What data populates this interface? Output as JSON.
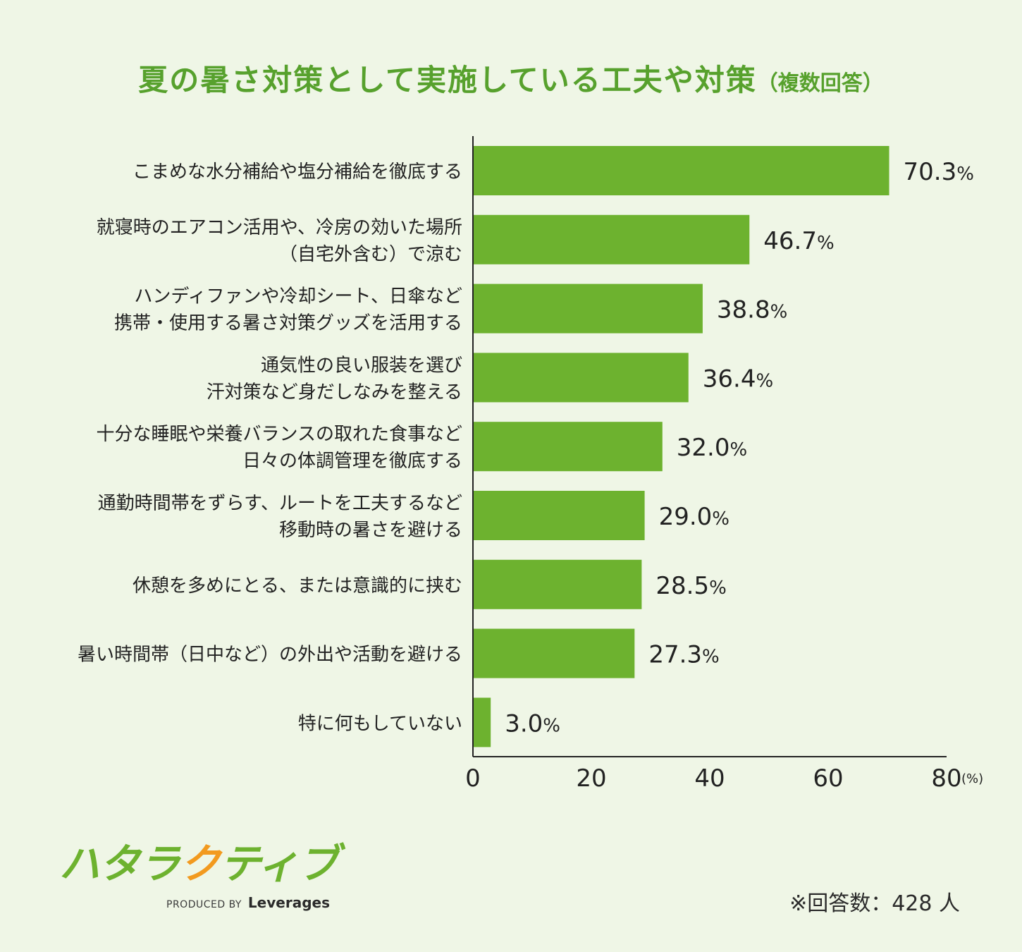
{
  "title": {
    "main": "夏の暑さ対策として実施している工夫や対策",
    "sub": "（複数回答）"
  },
  "chart_data": {
    "type": "bar",
    "orientation": "horizontal",
    "title": "夏の暑さ対策として実施している工夫や対策（複数回答）",
    "categories": [
      [
        "こまめな水分補給や塩分補給を徹底する"
      ],
      [
        "就寝時のエアコン活用や、冷房の効いた場所",
        "（自宅外含む）で涼む"
      ],
      [
        "ハンディファンや冷却シート、日傘など",
        "携帯・使用する暑さ対策グッズを活用する"
      ],
      [
        "通気性の良い服装を選び",
        "汗対策など身だしなみを整える"
      ],
      [
        "十分な睡眠や栄養バランスの取れた食事など",
        "日々の体調管理を徹底する"
      ],
      [
        "通勤時間帯をずらす、ルートを工夫するなど",
        "移動時の暑さを避ける"
      ],
      [
        "休憩を多めにとる、または意識的に挟む"
      ],
      [
        "暑い時間帯（日中など）の外出や活動を避ける"
      ],
      [
        "特に何もしていない"
      ]
    ],
    "values": [
      70.3,
      46.7,
      38.8,
      36.4,
      32.0,
      29.0,
      28.5,
      27.3,
      3.0
    ],
    "value_labels": [
      "70.3",
      "46.7",
      "38.8",
      "36.4",
      "32.0",
      "29.0",
      "28.5",
      "27.3",
      "3.0"
    ],
    "value_suffix": "%",
    "x_ticks": [
      "0",
      "20",
      "40",
      "60",
      "80"
    ],
    "x_unit": "(%)",
    "xlim": [
      0,
      80
    ],
    "grid": false,
    "colors": {
      "bar": "#6db22f",
      "axis": "#222222",
      "text": "#222222",
      "title": "#57a12d"
    }
  },
  "logo": {
    "name": "ハタラクティブ",
    "glyphs": [
      "ハ",
      "タ",
      "ラ",
      "ク",
      "テ",
      "ィ",
      "ブ"
    ],
    "glyph_colors": [
      "#6db22f",
      "#6db22f",
      "#6db22f",
      "#f29a1f",
      "#6db22f",
      "#6db22f",
      "#6db22f"
    ],
    "produced_by": "PRODUCED BY",
    "company": "Leverages"
  },
  "respondents": "※回答数：428 人"
}
